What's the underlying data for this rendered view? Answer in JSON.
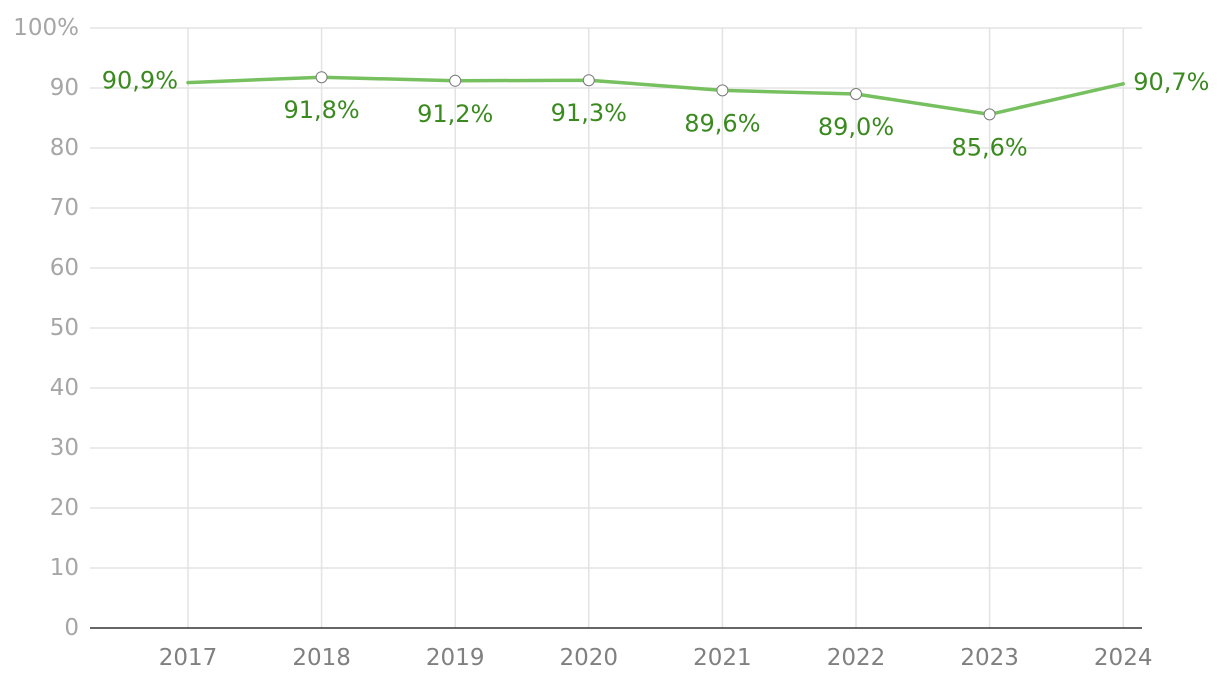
{
  "chart_data": {
    "type": "line",
    "categories": [
      "2017",
      "2018",
      "2019",
      "2020",
      "2021",
      "2022",
      "2023",
      "2024"
    ],
    "series": [
      {
        "values": [
          90.9,
          91.8,
          91.2,
          91.3,
          89.6,
          89.0,
          85.6,
          90.7
        ],
        "labels": [
          "90,9%",
          "91,8%",
          "91,2%",
          "91,3%",
          "89,6%",
          "89,0%",
          "85,6%",
          "90,7%"
        ]
      }
    ],
    "y_ticks": [
      "0",
      "10",
      "20",
      "30",
      "40",
      "50",
      "60",
      "70",
      "80",
      "90",
      "100%"
    ],
    "ylim": [
      0,
      100
    ],
    "grid": true,
    "colors": {
      "line": "#77c05f",
      "label": "#3a8a1f",
      "marker_stroke": "#7a7a7a"
    }
  }
}
